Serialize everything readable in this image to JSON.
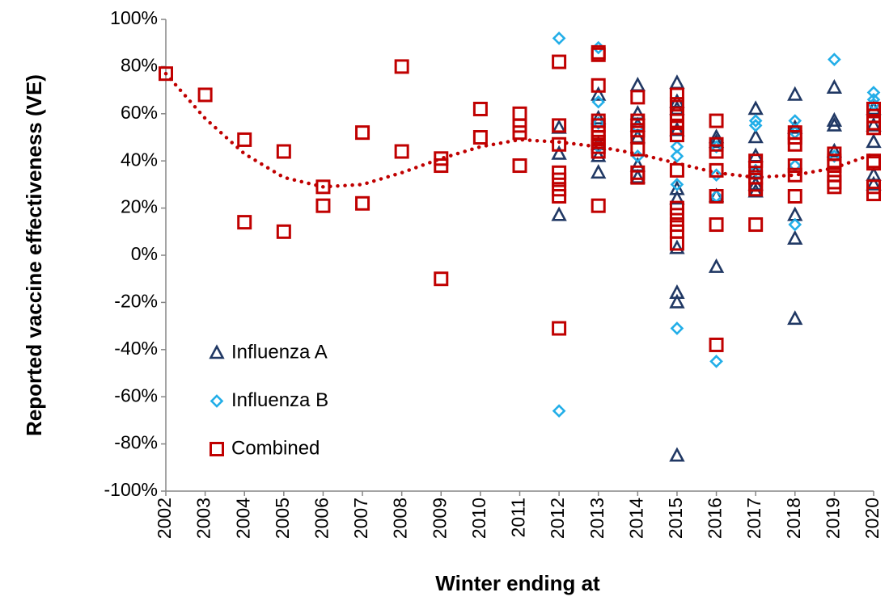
{
  "chart_data": {
    "type": "scatter",
    "xlabel": "Winter ending at",
    "ylabel": "Reported vaccine effectiveness (VE)",
    "xlim": [
      2002,
      2020
    ],
    "xticks": [
      2002,
      2003,
      2004,
      2005,
      2006,
      2007,
      2008,
      2009,
      2010,
      2011,
      2012,
      2013,
      2014,
      2015,
      2016,
      2017,
      2018,
      2019,
      2020
    ],
    "ylim": [
      -100,
      100
    ],
    "yticks": [
      {
        "value": -100,
        "label": "-100%"
      },
      {
        "value": -80,
        "label": "-80%"
      },
      {
        "value": -60,
        "label": "-60%"
      },
      {
        "value": -40,
        "label": "-40%"
      },
      {
        "value": -20,
        "label": "-20%"
      },
      {
        "value": 0,
        "label": "0%"
      },
      {
        "value": 20,
        "label": "20%"
      },
      {
        "value": 40,
        "label": "40%"
      },
      {
        "value": 60,
        "label": "60%"
      },
      {
        "value": 80,
        "label": "80%"
      },
      {
        "value": 100,
        "label": "100%"
      }
    ],
    "grid": false,
    "legend": "lower left",
    "series": [
      {
        "name": "Influenza A",
        "color": "#203864",
        "marker": "triangle",
        "x": [
          2012,
          2012,
          2012,
          2013,
          2013,
          2013,
          2013,
          2013,
          2014,
          2014,
          2014,
          2014,
          2014,
          2014,
          2015,
          2015,
          2015,
          2015,
          2015,
          2015,
          2015,
          2015,
          2015,
          2015,
          2016,
          2016,
          2016,
          2016,
          2017,
          2017,
          2017,
          2017,
          2017,
          2017,
          2018,
          2018,
          2018,
          2018,
          2018,
          2019,
          2019,
          2019,
          2019,
          2020,
          2020,
          2020,
          2020,
          2020
        ],
        "values": [
          54,
          43,
          17,
          68,
          58,
          47,
          42,
          35,
          72,
          60,
          55,
          50,
          38,
          33,
          73,
          65,
          62,
          53,
          28,
          24,
          3,
          -16,
          -20,
          -85,
          50,
          48,
          25,
          -5,
          62,
          50,
          42,
          35,
          30,
          27,
          68,
          54,
          17,
          7,
          -27,
          71,
          57,
          55,
          44,
          62,
          55,
          48,
          34,
          30
        ]
      },
      {
        "name": "Influenza B",
        "color": "#22aee8",
        "marker": "diamond",
        "x": [
          2012,
          2012,
          2013,
          2013,
          2013,
          2013,
          2014,
          2014,
          2015,
          2015,
          2015,
          2015,
          2016,
          2016,
          2016,
          2016,
          2017,
          2017,
          2017,
          2018,
          2018,
          2018,
          2018,
          2019,
          2019,
          2020,
          2020,
          2020
        ],
        "values": [
          92,
          -66,
          88,
          65,
          56,
          46,
          54,
          42,
          46,
          42,
          30,
          -31,
          46,
          34,
          25,
          -45,
          57,
          55,
          36,
          57,
          52,
          38,
          13,
          83,
          42,
          69,
          66,
          64
        ]
      },
      {
        "name": "Combined",
        "color": "#c00000",
        "marker": "square",
        "x": [
          2002,
          2003,
          2004,
          2004,
          2005,
          2005,
          2006,
          2006,
          2007,
          2007,
          2008,
          2008,
          2009,
          2009,
          2009,
          2010,
          2010,
          2011,
          2011,
          2011,
          2011,
          2012,
          2012,
          2012,
          2012,
          2012,
          2012,
          2012,
          2012,
          2013,
          2013,
          2013,
          2013,
          2013,
          2013,
          2013,
          2013,
          2013,
          2013,
          2013,
          2014,
          2014,
          2014,
          2014,
          2014,
          2014,
          2014,
          2014,
          2015,
          2015,
          2015,
          2015,
          2015,
          2015,
          2015,
          2015,
          2015,
          2015,
          2015,
          2015,
          2016,
          2016,
          2016,
          2016,
          2016,
          2016,
          2016,
          2017,
          2017,
          2017,
          2017,
          2017,
          2017,
          2018,
          2018,
          2018,
          2018,
          2018,
          2018,
          2019,
          2019,
          2019,
          2019,
          2019,
          2019,
          2020,
          2020,
          2020,
          2020,
          2020,
          2020,
          2020,
          2020
        ],
        "values": [
          77,
          68,
          49,
          14,
          44,
          10,
          29,
          21,
          52,
          22,
          80,
          44,
          41,
          38,
          -10,
          62,
          50,
          60,
          55,
          52,
          38,
          82,
          55,
          47,
          35,
          32,
          28,
          25,
          -31,
          86,
          85,
          72,
          57,
          55,
          52,
          50,
          48,
          46,
          44,
          21,
          67,
          57,
          55,
          53,
          50,
          45,
          35,
          33,
          68,
          64,
          60,
          57,
          54,
          51,
          36,
          20,
          17,
          13,
          10,
          5,
          57,
          47,
          44,
          36,
          25,
          13,
          -38,
          40,
          37,
          33,
          30,
          28,
          13,
          52,
          50,
          47,
          38,
          34,
          25,
          43,
          40,
          38,
          34,
          31,
          29,
          62,
          59,
          56,
          54,
          40,
          39,
          29,
          26
        ]
      }
    ],
    "trendline": {
      "color": "#c00000",
      "x": [
        2002,
        2003,
        2004,
        2005,
        2006,
        2007,
        2008,
        2009,
        2010,
        2011,
        2012,
        2013,
        2014,
        2015,
        2016,
        2017,
        2018,
        2019,
        2020
      ],
      "values": [
        77,
        58,
        43,
        33,
        29,
        30,
        35,
        41,
        46,
        49,
        48,
        46,
        43,
        39,
        35,
        33,
        34,
        37,
        43
      ]
    }
  }
}
